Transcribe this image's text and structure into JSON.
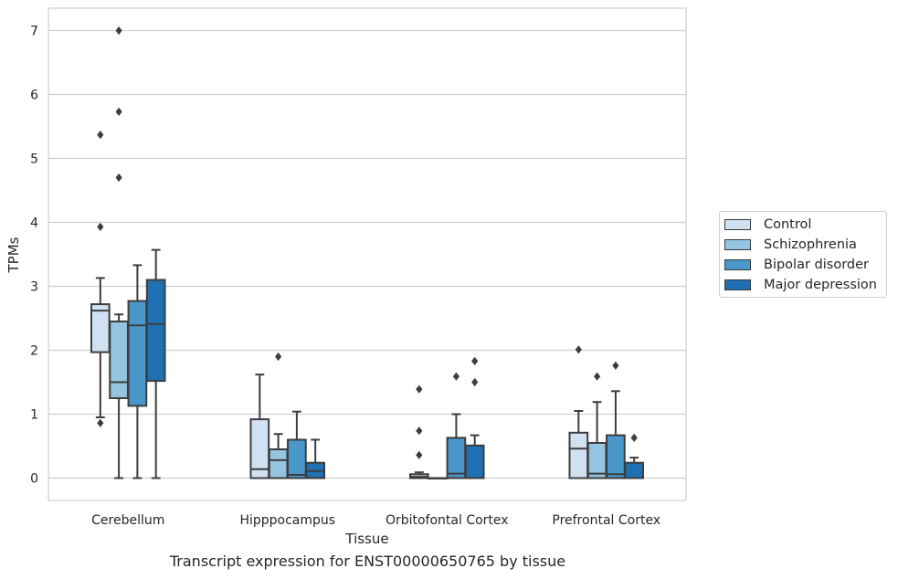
{
  "chart_data": {
    "type": "box",
    "title": "",
    "caption": "Transcript expression for ENST00000650765 by tissue",
    "xlabel": "Tissue",
    "ylabel": "TPMs",
    "ylim": [
      -0.35,
      7.35
    ],
    "yticks": [
      0,
      1,
      2,
      3,
      4,
      5,
      6,
      7
    ],
    "grid": true,
    "legend_position": "right",
    "categories": [
      "Cerebellum",
      "Hipppocampus",
      "Orbitofontal Cortex",
      "Prefrontal Cortex"
    ],
    "series": [
      {
        "name": "Control",
        "color": "#d0e1f2",
        "boxes": [
          {
            "whisker_low": 0.95,
            "q1": 1.97,
            "median": 2.62,
            "q3": 2.72,
            "whisker_high": 3.13,
            "outliers": [
              0.86,
              3.93,
              5.37
            ]
          },
          {
            "whisker_low": 0.0,
            "q1": 0.0,
            "median": 0.14,
            "q3": 0.92,
            "whisker_high": 1.62,
            "outliers": []
          },
          {
            "whisker_low": 0.0,
            "q1": 0.0,
            "median": 0.02,
            "q3": 0.06,
            "whisker_high": 0.09,
            "outliers": [
              0.36,
              0.74,
              1.39
            ]
          },
          {
            "whisker_low": 0.0,
            "q1": 0.0,
            "median": 0.46,
            "q3": 0.71,
            "whisker_high": 1.05,
            "outliers": [
              2.01
            ]
          }
        ]
      },
      {
        "name": "Schizophrenia",
        "color": "#94c4df",
        "boxes": [
          {
            "whisker_low": 0.0,
            "q1": 1.25,
            "median": 1.5,
            "q3": 2.45,
            "whisker_high": 2.56,
            "outliers": [
              4.7,
              5.73,
              7.0
            ]
          },
          {
            "whisker_low": 0.0,
            "q1": 0.0,
            "median": 0.28,
            "q3": 0.45,
            "whisker_high": 0.69,
            "outliers": [
              1.9
            ]
          },
          {
            "whisker_low": 0.0,
            "q1": 0.0,
            "median": 0.0,
            "q3": 0.0,
            "whisker_high": 0.0,
            "outliers": []
          },
          {
            "whisker_low": 0.0,
            "q1": 0.0,
            "median": 0.07,
            "q3": 0.55,
            "whisker_high": 1.19,
            "outliers": [
              1.59
            ]
          }
        ]
      },
      {
        "name": "Bipolar disorder",
        "color": "#4a98c9",
        "boxes": [
          {
            "whisker_low": 0.0,
            "q1": 1.13,
            "median": 2.39,
            "q3": 2.77,
            "whisker_high": 3.33,
            "outliers": []
          },
          {
            "whisker_low": 0.0,
            "q1": 0.0,
            "median": 0.05,
            "q3": 0.6,
            "whisker_high": 1.04,
            "outliers": []
          },
          {
            "whisker_low": 0.0,
            "q1": 0.0,
            "median": 0.07,
            "q3": 0.63,
            "whisker_high": 1.0,
            "outliers": [
              1.59
            ]
          },
          {
            "whisker_low": 0.0,
            "q1": 0.0,
            "median": 0.06,
            "q3": 0.67,
            "whisker_high": 1.36,
            "outliers": [
              1.76
            ]
          }
        ]
      },
      {
        "name": "Major depression",
        "color": "#2070b4",
        "boxes": [
          {
            "whisker_low": 0.0,
            "q1": 1.52,
            "median": 2.41,
            "q3": 3.1,
            "whisker_high": 3.57,
            "outliers": []
          },
          {
            "whisker_low": 0.0,
            "q1": 0.0,
            "median": 0.11,
            "q3": 0.24,
            "whisker_high": 0.6,
            "outliers": []
          },
          {
            "whisker_low": 0.0,
            "q1": 0.0,
            "median": 0.0,
            "q3": 0.51,
            "whisker_high": 0.67,
            "outliers": [
              1.5,
              1.83
            ]
          },
          {
            "whisker_low": 0.0,
            "q1": 0.0,
            "median": 0.0,
            "q3": 0.24,
            "whisker_high": 0.32,
            "outliers": [
              0.63
            ]
          }
        ]
      }
    ]
  }
}
